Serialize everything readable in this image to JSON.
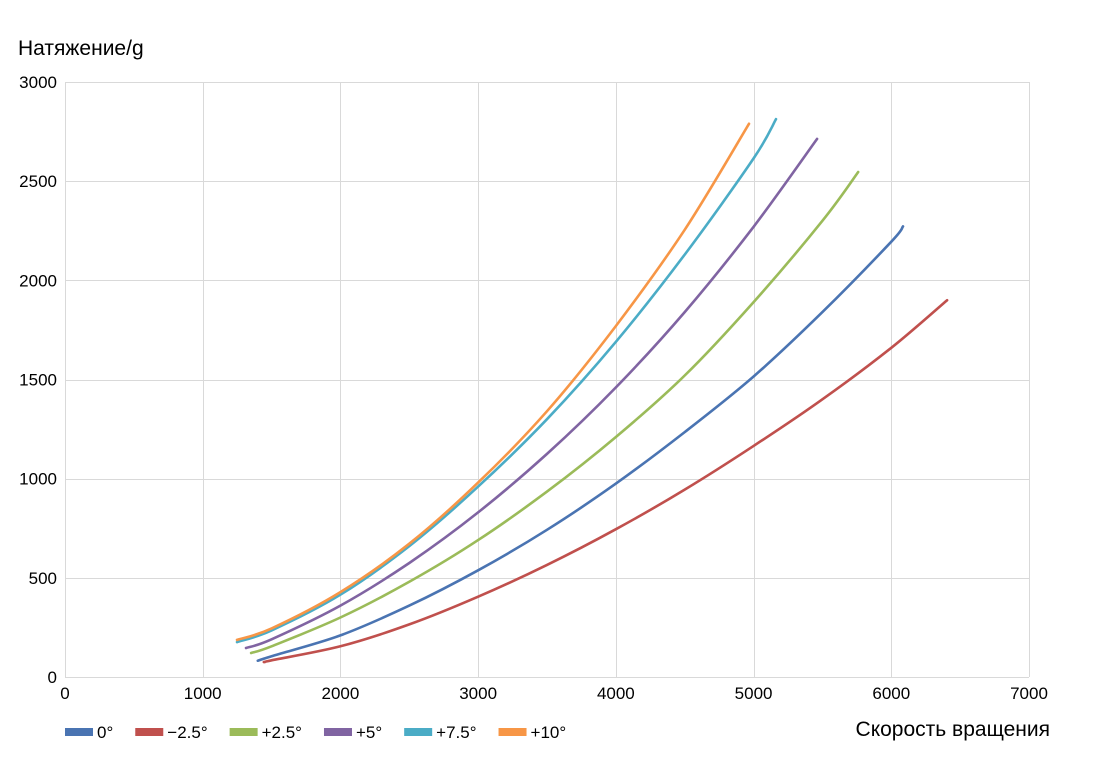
{
  "chart_data": {
    "type": "line",
    "title": "",
    "ylabel": "Натяжение/g",
    "xlabel": "Скорость вращения",
    "xlim": [
      0,
      7000
    ],
    "ylim": [
      0,
      3000
    ],
    "x_ticks": [
      0,
      1000,
      2000,
      3000,
      4000,
      5000,
      6000,
      7000
    ],
    "y_ticks": [
      0,
      500,
      1000,
      1500,
      2000,
      2500,
      3000
    ],
    "grid": true,
    "legend_position": "bottom-left",
    "series": [
      {
        "name": "0°",
        "color": "#4a74b2",
        "points": [
          [
            1400,
            82
          ],
          [
            1500,
            105
          ],
          [
            2000,
            210
          ],
          [
            2500,
            360
          ],
          [
            3000,
            538
          ],
          [
            3500,
            742
          ],
          [
            4000,
            975
          ],
          [
            4500,
            1235
          ],
          [
            5000,
            1515
          ],
          [
            5500,
            1840
          ],
          [
            6000,
            2195
          ],
          [
            6085,
            2272
          ]
        ]
      },
      {
        "name": "−2.5°",
        "color": "#c0504d",
        "points": [
          [
            1450,
            75
          ],
          [
            1500,
            84
          ],
          [
            2000,
            155
          ],
          [
            2500,
            265
          ],
          [
            3000,
            405
          ],
          [
            3500,
            565
          ],
          [
            4000,
            745
          ],
          [
            4500,
            945
          ],
          [
            5000,
            1165
          ],
          [
            5500,
            1400
          ],
          [
            6000,
            1660
          ],
          [
            6405,
            1900
          ]
        ]
      },
      {
        "name": "+2.5°",
        "color": "#9bbb59",
        "points": [
          [
            1351,
            121
          ],
          [
            1500,
            155
          ],
          [
            2000,
            300
          ],
          [
            2500,
            480
          ],
          [
            3000,
            690
          ],
          [
            3500,
            935
          ],
          [
            4000,
            1210
          ],
          [
            4500,
            1520
          ],
          [
            5000,
            1890
          ],
          [
            5500,
            2300
          ],
          [
            5760,
            2546
          ]
        ]
      },
      {
        "name": "+5°",
        "color": "#8064a2",
        "points": [
          [
            1314,
            146
          ],
          [
            1500,
            190
          ],
          [
            2000,
            360
          ],
          [
            2500,
            575
          ],
          [
            3000,
            830
          ],
          [
            3500,
            1125
          ],
          [
            4000,
            1460
          ],
          [
            4500,
            1840
          ],
          [
            5000,
            2270
          ],
          [
            5461,
            2713
          ]
        ]
      },
      {
        "name": "+7.5°",
        "color": "#4bacc6",
        "points": [
          [
            1249,
            176
          ],
          [
            1500,
            235
          ],
          [
            2000,
            415
          ],
          [
            2500,
            660
          ],
          [
            3000,
            960
          ],
          [
            3500,
            1300
          ],
          [
            4000,
            1690
          ],
          [
            4500,
            2130
          ],
          [
            5000,
            2615
          ],
          [
            5163,
            2813
          ]
        ]
      },
      {
        "name": "+10°",
        "color": "#f79646",
        "points": [
          [
            1249,
            187
          ],
          [
            1500,
            245
          ],
          [
            2000,
            428
          ],
          [
            2500,
            672
          ],
          [
            3000,
            980
          ],
          [
            3500,
            1340
          ],
          [
            4000,
            1770
          ],
          [
            4500,
            2255
          ],
          [
            4967,
            2789
          ]
        ]
      }
    ]
  }
}
